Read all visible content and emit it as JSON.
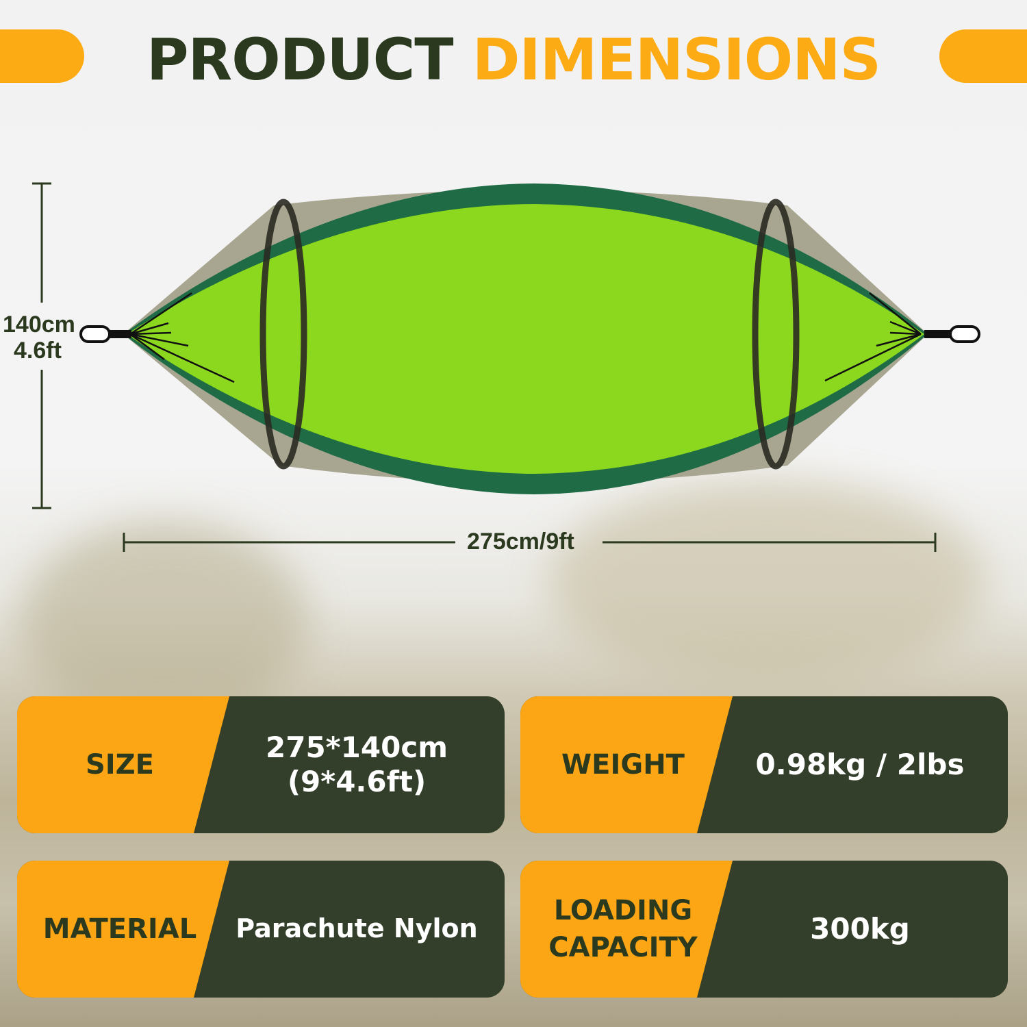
{
  "title": {
    "part1": "PRODUCT",
    "part2": "DIMENSIONS"
  },
  "dimensions": {
    "height_cm": "140cm",
    "height_ft": "4.6ft",
    "length": "275cm/9ft"
  },
  "specs": [
    {
      "label": "SIZE",
      "value": "275*140cm\n(9*4.6ft)"
    },
    {
      "label": "WEIGHT",
      "value": "0.98kg / 2lbs"
    },
    {
      "label": "MATERIAL",
      "value": "Parachute Nylon"
    },
    {
      "label": "LOADING\nCAPACITY",
      "value": "300kg"
    }
  ],
  "colors": {
    "accent": "#fdab14",
    "dark": "#2b3a1f",
    "card_dark": "#333f2a",
    "hammock_lime": "#8cd81f",
    "hammock_green": "#1e6b45",
    "mesh": "#a8a690"
  }
}
